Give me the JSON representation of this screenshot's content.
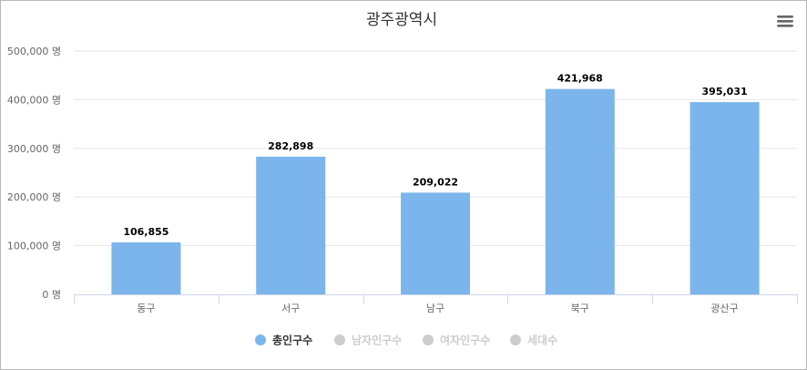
{
  "chart_data": {
    "type": "bar",
    "title": "광주광역시",
    "categories": [
      "동구",
      "서구",
      "남구",
      "북구",
      "광산구"
    ],
    "series": [
      {
        "name": "총인구수",
        "visible": true,
        "values": [
          106855,
          282898,
          209022,
          421968,
          395031
        ],
        "labels": [
          "106,855",
          "282,898",
          "209,022",
          "421,968",
          "395,031"
        ]
      },
      {
        "name": "남자인구수",
        "visible": false
      },
      {
        "name": "여자인구수",
        "visible": false
      },
      {
        "name": "세대수",
        "visible": false
      }
    ],
    "y_ticks": [
      0,
      100000,
      200000,
      300000,
      400000,
      500000
    ],
    "y_tick_labels": [
      "0 명",
      "100,000 명",
      "200,000 명",
      "300,000 명",
      "400,000 명",
      "500,000 명"
    ],
    "ylim": [
      0,
      500000
    ],
    "grid": true,
    "legend_position": "bottom-center",
    "colors": {
      "bar": "#7cb5ec",
      "active_legend": "#333333",
      "inactive_legend": "#cccccc",
      "grid": "#e6e6e6",
      "axis": "#ccd6eb"
    },
    "icons": {
      "menu": "hamburger-menu-icon"
    }
  }
}
